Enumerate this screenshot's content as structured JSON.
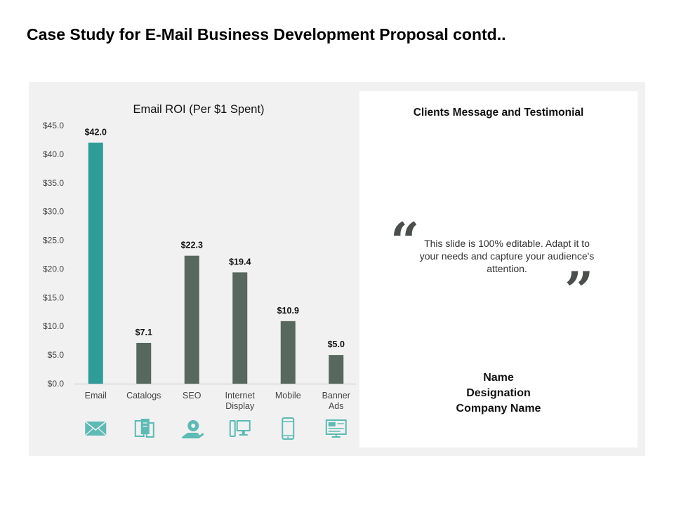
{
  "slide": {
    "title": "Case Study for E-Mail Business Development Proposal contd.."
  },
  "colors": {
    "accent": "#2e9c97",
    "bar": "#57685f",
    "icon": "#5dbab4",
    "panel": "#f1f1f1"
  },
  "chart_data": {
    "type": "bar",
    "title": "Email ROI (Per $1 Spent)",
    "xlabel": "",
    "ylabel": "",
    "ylim": [
      0,
      45
    ],
    "yticks": [
      "$0.0",
      "$5.0",
      "$10.0",
      "$15.0",
      "$20.0",
      "$25.0",
      "$30.0",
      "$35.0",
      "$40.0",
      "$45.0"
    ],
    "categories": [
      {
        "lines": [
          "Email"
        ],
        "icon": "envelope-icon"
      },
      {
        "lines": [
          "Catalogs"
        ],
        "icon": "catalog-icon"
      },
      {
        "lines": [
          "SEO"
        ],
        "icon": "seo-hand-icon"
      },
      {
        "lines": [
          "Internet",
          "Display"
        ],
        "icon": "desktop-computer-icon"
      },
      {
        "lines": [
          "Mobile"
        ],
        "icon": "mobile-phone-icon"
      },
      {
        "lines": [
          "Banner",
          "Ads"
        ],
        "icon": "banner-ads-icon"
      }
    ],
    "values": [
      42.0,
      7.1,
      22.3,
      19.4,
      10.9,
      5.0
    ],
    "data_labels": [
      "$42.0",
      "$7.1",
      "$22.3",
      "$19.4",
      "$10.9",
      "$5.0"
    ],
    "highlight_index": 0,
    "grid": false,
    "legend": "none"
  },
  "testimonial": {
    "heading": "Clients Message and Testimonial",
    "open_quote": "“",
    "close_quote": "”",
    "text": "This slide is 100% editable. Adapt it to your needs and capture your audience's attention.",
    "name": "Name",
    "designation": "Designation",
    "company": "Company Name"
  }
}
